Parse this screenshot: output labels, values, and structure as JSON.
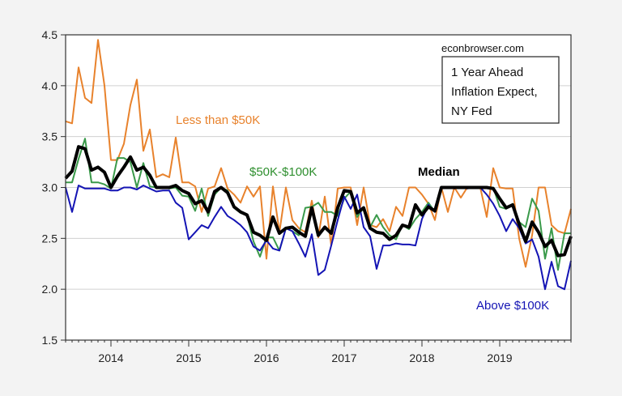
{
  "chart_data": {
    "type": "line",
    "title": "",
    "xlabel": "",
    "ylabel": "",
    "x_start": "2013-06",
    "x_end": "2019-12",
    "frequency": "monthly",
    "x_tick_labels": [
      "2014",
      "2015",
      "2016",
      "2017",
      "2018",
      "2019"
    ],
    "y_tick_labels": [
      "1.5",
      "2.0",
      "2.5",
      "3.0",
      "3.5",
      "4.0",
      "4.5"
    ],
    "ylim": [
      1.5,
      4.5
    ],
    "grid": true,
    "source_note": "econbrowser.com",
    "legend_box": [
      "1 Year Ahead",
      "Inflation Expect,",
      "NY Fed"
    ],
    "series": [
      {
        "name": "Less than $50K",
        "color": "#e8822c",
        "width": 2,
        "values": [
          3.65,
          3.63,
          4.18,
          3.88,
          3.83,
          4.45,
          4.0,
          3.27,
          3.27,
          3.43,
          3.81,
          4.06,
          3.36,
          3.57,
          3.1,
          3.13,
          3.1,
          3.49,
          3.05,
          3.05,
          3.01,
          2.76,
          2.99,
          3.01,
          3.19,
          2.99,
          2.93,
          2.85,
          3.01,
          2.91,
          3.01,
          2.3,
          3.01,
          2.56,
          3.0,
          2.68,
          2.6,
          2.56,
          2.87,
          2.51,
          2.91,
          2.43,
          2.99,
          3.0,
          3.0,
          2.63,
          3.0,
          2.63,
          2.61,
          2.69,
          2.57,
          2.81,
          2.72,
          3.0,
          3.0,
          2.93,
          2.84,
          2.68,
          3.0,
          2.76,
          3.0,
          2.9,
          3.0,
          3.0,
          3.0,
          2.71,
          3.19,
          3.0,
          2.99,
          2.99,
          2.5,
          2.22,
          2.53,
          3.0,
          3.0,
          2.63,
          2.57,
          2.55,
          2.79
        ]
      },
      {
        "name": "$50K-$100K",
        "color": "#3a9a4a",
        "width": 2,
        "values": [
          3.05,
          3.05,
          3.28,
          3.48,
          3.05,
          3.05,
          3.03,
          2.99,
          3.29,
          3.29,
          3.25,
          3.0,
          3.24,
          3.01,
          3.0,
          3.0,
          2.99,
          3.0,
          2.92,
          2.91,
          2.77,
          2.99,
          2.72,
          2.93,
          3.0,
          2.97,
          2.8,
          2.75,
          2.73,
          2.47,
          2.32,
          2.51,
          2.51,
          2.38,
          2.6,
          2.57,
          2.53,
          2.8,
          2.81,
          2.85,
          2.76,
          2.76,
          2.72,
          2.89,
          2.96,
          2.71,
          2.8,
          2.61,
          2.73,
          2.61,
          2.53,
          2.49,
          2.63,
          2.59,
          2.69,
          2.76,
          2.85,
          2.76,
          3.0,
          3.0,
          3.0,
          3.0,
          3.0,
          3.0,
          3.0,
          3.0,
          3.0,
          2.81,
          2.79,
          2.84,
          2.66,
          2.61,
          2.89,
          2.77,
          2.3,
          2.6,
          2.19,
          2.55,
          2.55
        ]
      },
      {
        "name": "Above $100K",
        "color": "#1414b4",
        "width": 2,
        "values": [
          3.0,
          2.76,
          3.02,
          2.99,
          2.99,
          2.99,
          2.99,
          2.97,
          2.97,
          3.0,
          3.0,
          2.98,
          3.02,
          2.99,
          2.96,
          2.97,
          2.97,
          2.85,
          2.8,
          2.49,
          2.56,
          2.63,
          2.6,
          2.71,
          2.81,
          2.72,
          2.68,
          2.63,
          2.56,
          2.42,
          2.38,
          2.48,
          2.4,
          2.38,
          2.6,
          2.57,
          2.45,
          2.32,
          2.54,
          2.14,
          2.19,
          2.43,
          2.68,
          2.91,
          2.79,
          2.93,
          2.61,
          2.52,
          2.2,
          2.43,
          2.43,
          2.45,
          2.44,
          2.44,
          2.43,
          2.69,
          2.83,
          2.76,
          3.0,
          3.0,
          2.99,
          3.0,
          2.99,
          3.0,
          3.0,
          2.93,
          2.84,
          2.72,
          2.57,
          2.69,
          2.6,
          2.45,
          2.49,
          2.32,
          2.0,
          2.27,
          2.03,
          2.0,
          2.28
        ]
      },
      {
        "name": "Median",
        "color": "#000000",
        "width": 4,
        "values": [
          3.09,
          3.16,
          3.4,
          3.38,
          3.17,
          3.2,
          3.15,
          3.0,
          3.11,
          3.2,
          3.3,
          3.17,
          3.2,
          3.12,
          3.0,
          3.0,
          3.0,
          3.02,
          2.97,
          2.94,
          2.84,
          2.87,
          2.76,
          2.96,
          3.0,
          2.95,
          2.81,
          2.76,
          2.73,
          2.56,
          2.53,
          2.48,
          2.71,
          2.55,
          2.6,
          2.61,
          2.56,
          2.52,
          2.8,
          2.53,
          2.61,
          2.55,
          2.8,
          2.97,
          2.96,
          2.75,
          2.8,
          2.6,
          2.56,
          2.55,
          2.49,
          2.53,
          2.63,
          2.61,
          2.83,
          2.73,
          2.81,
          2.77,
          3.0,
          3.0,
          3.0,
          3.0,
          3.0,
          3.0,
          3.0,
          3.0,
          2.99,
          2.89,
          2.8,
          2.83,
          2.64,
          2.47,
          2.66,
          2.56,
          2.42,
          2.48,
          2.33,
          2.34,
          2.52
        ]
      }
    ]
  }
}
